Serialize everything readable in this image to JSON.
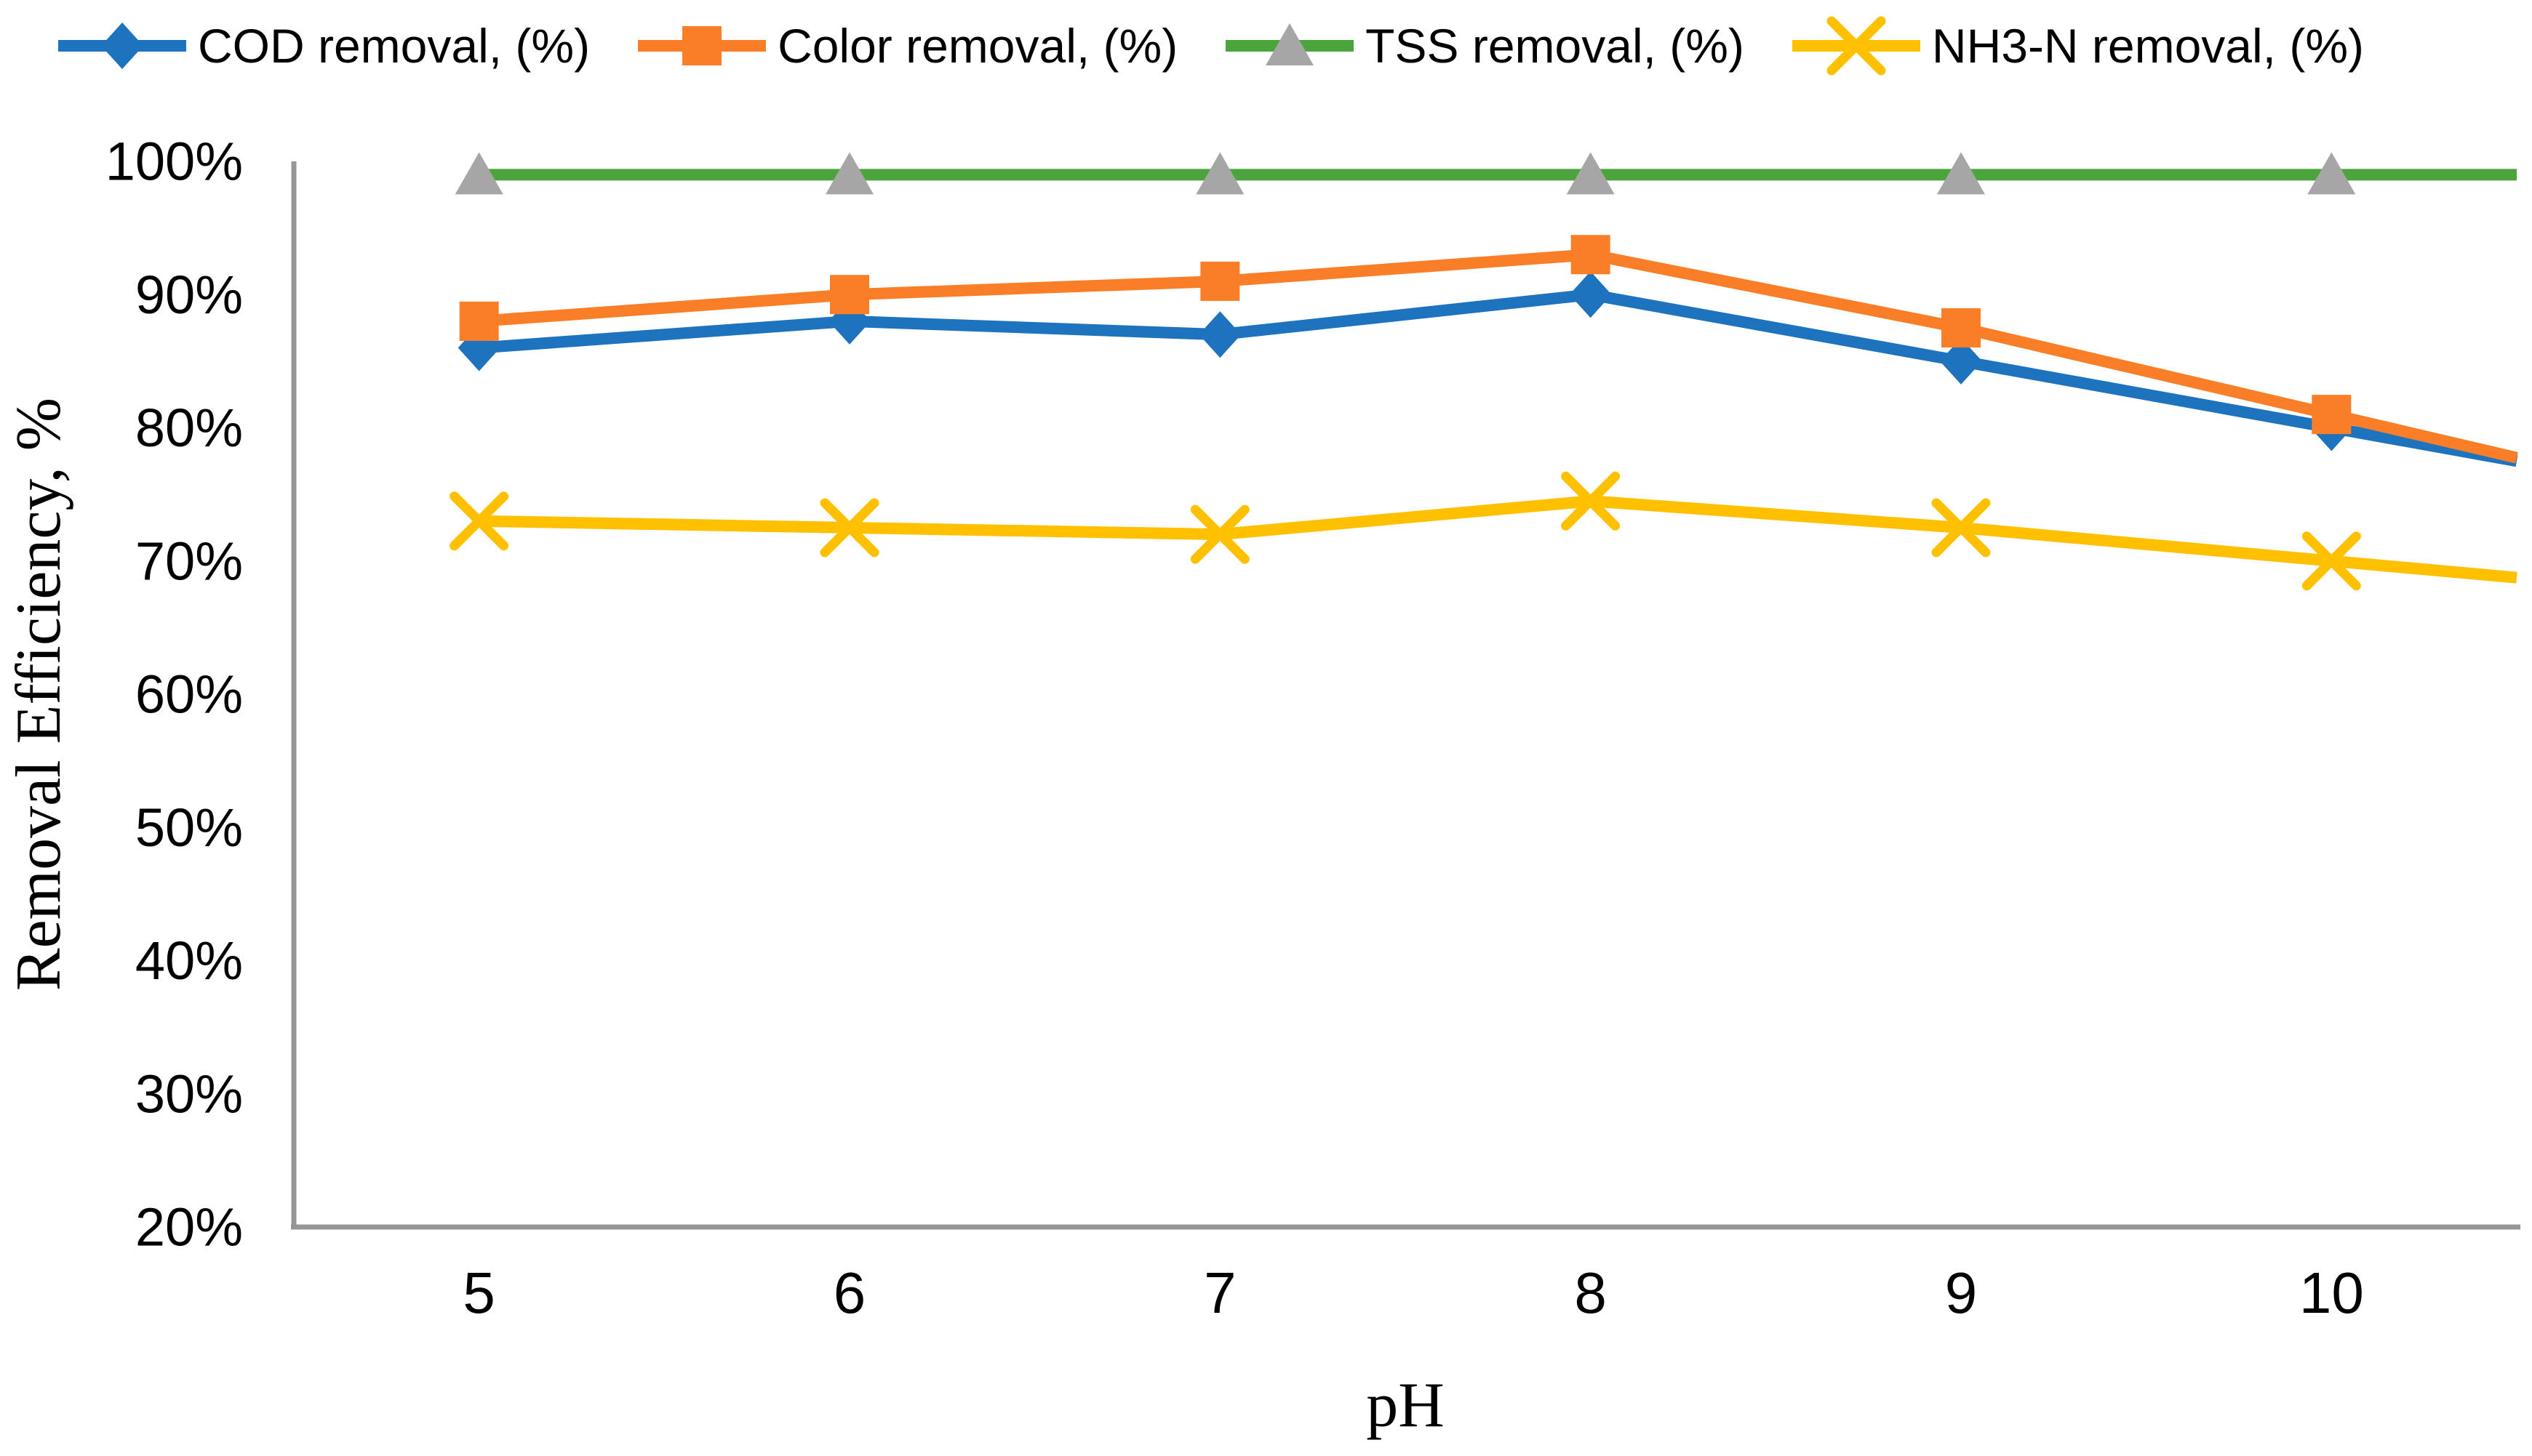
{
  "figure": {
    "background": "#FFFFFF",
    "axis_color": "#969696",
    "text_color": "#000000"
  },
  "chart_data": {
    "type": "line",
    "title": "",
    "xlabel": "pH",
    "ylabel": "Removal Efficiency, %",
    "categories": [
      "5",
      "6",
      "7",
      "8",
      "9",
      "10"
    ],
    "y_ticks": [
      "100%",
      "90%",
      "80%",
      "70%",
      "60%",
      "50%",
      "40%",
      "30%",
      "20%"
    ],
    "y_tick_values": [
      100,
      90,
      80,
      70,
      60,
      50,
      40,
      30,
      20
    ],
    "ylim": [
      20,
      100
    ],
    "grid": false,
    "legend_position": "top",
    "series": [
      {
        "name": "COD removal, (%)",
        "color": "#1E73BE",
        "marker": "diamond",
        "values": [
          86,
          88,
          87,
          90,
          85,
          80
        ]
      },
      {
        "name": "Color removal, (%)",
        "color": "#F97E27",
        "marker": "square",
        "values": [
          88,
          90,
          91,
          93,
          87.5,
          81
        ]
      },
      {
        "name": "TSS removal, (%)",
        "color": "#4CA53C",
        "marker": "triangle",
        "marker_color": "#A6A6A6",
        "values": [
          99,
          99,
          99,
          99,
          99,
          99
        ]
      },
      {
        "name": "NH3-N removal, (%)",
        "color": "#FFC000",
        "marker": "x",
        "values": [
          73,
          72.5,
          72,
          74.5,
          72.5,
          70
        ]
      }
    ]
  }
}
